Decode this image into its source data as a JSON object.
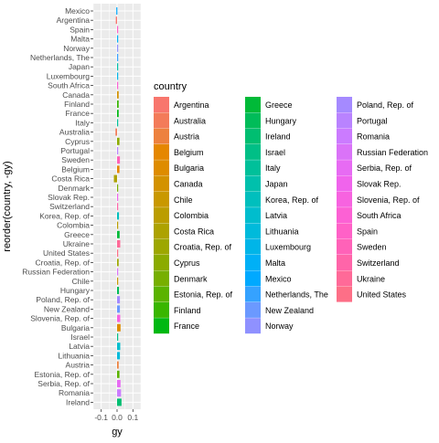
{
  "chart_data": {
    "type": "bar",
    "orientation": "horizontal",
    "xlabel": "gy",
    "ylabel": "reorder(country, -gy)",
    "x_ticks": [
      "-0.1",
      "0.0",
      "0.1"
    ],
    "xlim": [
      -0.15,
      0.15
    ],
    "grid": true,
    "legend_title": "country",
    "legend_position": "right",
    "categories": [
      "Mexico",
      "Argentina",
      "Spain",
      "Malta",
      "Norway",
      "Netherlands, The",
      "Japan",
      "Luxembourg",
      "South Africa",
      "Canada",
      "Finland",
      "France",
      "Italy",
      "Australia",
      "Cyprus",
      "Portugal",
      "Sweden",
      "Belgium",
      "Costa Rica",
      "Denmark",
      "Slovak Rep.",
      "Switzerland",
      "Korea, Rep. of",
      "Colombia",
      "Greece",
      "Ukraine",
      "United States",
      "Croatia, Rep. of",
      "Russian Federation",
      "Chile",
      "Hungary",
      "Poland, Rep. of",
      "New Zealand",
      "Slovenia, Rep. of",
      "Bulgaria",
      "Israel",
      "Latvia",
      "Lithuania",
      "Austria",
      "Estonia, Rep. of",
      "Serbia, Rep. of",
      "Romania",
      "Ireland"
    ],
    "values": [
      -0.005,
      -0.008,
      0.0,
      0.0,
      0.005,
      0.002,
      0.004,
      0.004,
      0.0,
      0.01,
      0.01,
      0.01,
      0.0,
      -0.01,
      0.015,
      0.0,
      0.018,
      0.015,
      -0.02,
      0.003,
      0.0,
      0.005,
      0.012,
      0.002,
      0.016,
      0.02,
      0.003,
      0.01,
      0.0,
      0.0,
      0.012,
      0.018,
      0.018,
      0.02,
      0.022,
      0.0,
      0.02,
      0.018,
      0.01,
      0.015,
      0.022,
      0.025,
      0.028
    ],
    "legend_items": [
      {
        "label": "Argentina",
        "color": "#F8766D"
      },
      {
        "label": "Australia",
        "color": "#F37B59"
      },
      {
        "label": "Austria",
        "color": "#ED813E"
      },
      {
        "label": "Belgium",
        "color": "#E58700"
      },
      {
        "label": "Bulgaria",
        "color": "#DE8C00"
      },
      {
        "label": "Canada",
        "color": "#D39200"
      },
      {
        "label": "Chile",
        "color": "#C99800"
      },
      {
        "label": "Colombia",
        "color": "#BB9D00"
      },
      {
        "label": "Costa Rica",
        "color": "#ADA200"
      },
      {
        "label": "Croatia, Rep. of",
        "color": "#9DA700"
      },
      {
        "label": "Cyprus",
        "color": "#8BAB00"
      },
      {
        "label": "Denmark",
        "color": "#77AF00"
      },
      {
        "label": "Estonia, Rep. of",
        "color": "#5BB300"
      },
      {
        "label": "Finland",
        "color": "#39B600"
      },
      {
        "label": "France",
        "color": "#00B812"
      },
      {
        "label": "Greece",
        "color": "#00BA38"
      },
      {
        "label": "Hungary",
        "color": "#00BC59"
      },
      {
        "label": "Ireland",
        "color": "#00BE71"
      },
      {
        "label": "Israel",
        "color": "#00BF86"
      },
      {
        "label": "Italy",
        "color": "#00C09A"
      },
      {
        "label": "Japan",
        "color": "#00C0AC"
      },
      {
        "label": "Korea, Rep. of",
        "color": "#00BFBD"
      },
      {
        "label": "Latvia",
        "color": "#00BDCD"
      },
      {
        "label": "Lithuania",
        "color": "#00BADB"
      },
      {
        "label": "Luxembourg",
        "color": "#00B5E8"
      },
      {
        "label": "Malta",
        "color": "#00B0F6"
      },
      {
        "label": "Mexico",
        "color": "#00A9FF"
      },
      {
        "label": "Netherlands, The",
        "color": "#35A2FF"
      },
      {
        "label": "New Zealand",
        "color": "#6B99FF"
      },
      {
        "label": "Norway",
        "color": "#8F91FF"
      },
      {
        "label": "Poland, Rep. of",
        "color": "#A58AFF"
      },
      {
        "label": "Portugal",
        "color": "#B983FF"
      },
      {
        "label": "Romania",
        "color": "#CB7BFF"
      },
      {
        "label": "Russian Federation",
        "color": "#DA73F8"
      },
      {
        "label": "Serbia, Rep. of",
        "color": "#E76BF3"
      },
      {
        "label": "Slovak Rep.",
        "color": "#F064EC"
      },
      {
        "label": "Slovenia, Rep. of",
        "color": "#F763E0"
      },
      {
        "label": "South Africa",
        "color": "#FC61D4"
      },
      {
        "label": "Spain",
        "color": "#FF61C7"
      },
      {
        "label": "Sweden",
        "color": "#FF62B8"
      },
      {
        "label": "Switzerland",
        "color": "#FF65A9"
      },
      {
        "label": "Ukraine",
        "color": "#FF6A98"
      },
      {
        "label": "United States",
        "color": "#FD6F87"
      }
    ]
  }
}
